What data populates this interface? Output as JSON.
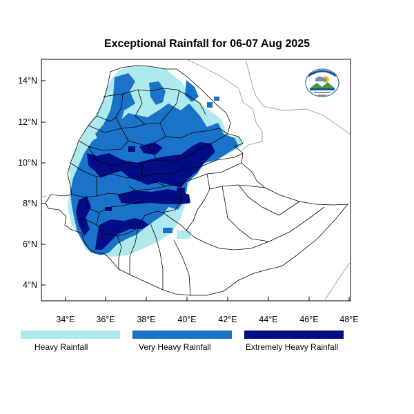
{
  "title": "Exceptional Rainfall for 06-07 Aug 2025",
  "axes": {
    "x_ticks": [
      "34°E",
      "36°E",
      "38°E",
      "40°E",
      "42°E",
      "44°E",
      "46°E",
      "48°E"
    ],
    "y_ticks": [
      "14°N",
      "12°N",
      "10°N",
      "8°N",
      "6°N",
      "4°N"
    ]
  },
  "legend": [
    {
      "label": "Heavy Rainfall",
      "color": "#aee9ee"
    },
    {
      "label": "Very Heavy Rainfall",
      "color": "#1a73c8"
    },
    {
      "label": "Extremely Heavy Rainfall",
      "color": "#020d85"
    }
  ],
  "colors": {
    "heavy": "#aee9ee",
    "very_heavy": "#1a73c8",
    "extreme": "#020d85",
    "border": "#000000",
    "neighbor_border": "#9a9a9a"
  },
  "logo": {
    "icon": "ethiopian-meteorology-institute-logo-icon"
  }
}
